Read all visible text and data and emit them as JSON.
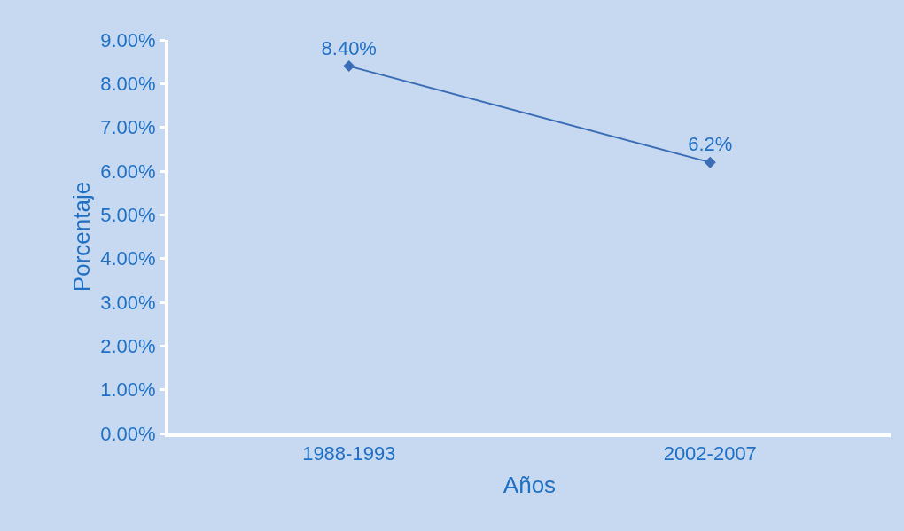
{
  "chart_data": {
    "type": "line",
    "xlabel": "Años",
    "ylabel": "Porcentaje",
    "categories": [
      "1988-1993",
      "2002-2007"
    ],
    "series": [
      {
        "color": "#3a6db5",
        "values": [
          8.4,
          6.2
        ],
        "value_labels": [
          "8.40%",
          "6.2%"
        ]
      }
    ],
    "ylim": [
      0,
      9
    ],
    "yticks": [
      {
        "value": 0,
        "label": "0.00%"
      },
      {
        "value": 1,
        "label": "1.00%"
      },
      {
        "value": 2,
        "label": "2.00%"
      },
      {
        "value": 3,
        "label": "3.00%"
      },
      {
        "value": 4,
        "label": "4.00%"
      },
      {
        "value": 5,
        "label": "5.00%"
      },
      {
        "value": 6,
        "label": "6.00%"
      },
      {
        "value": 7,
        "label": "7.00%"
      },
      {
        "value": 8,
        "label": "8.00%"
      },
      {
        "value": 9,
        "label": "9.00%"
      }
    ],
    "marker": "diamond",
    "line_style": "solid",
    "grid": false,
    "legend": false
  }
}
